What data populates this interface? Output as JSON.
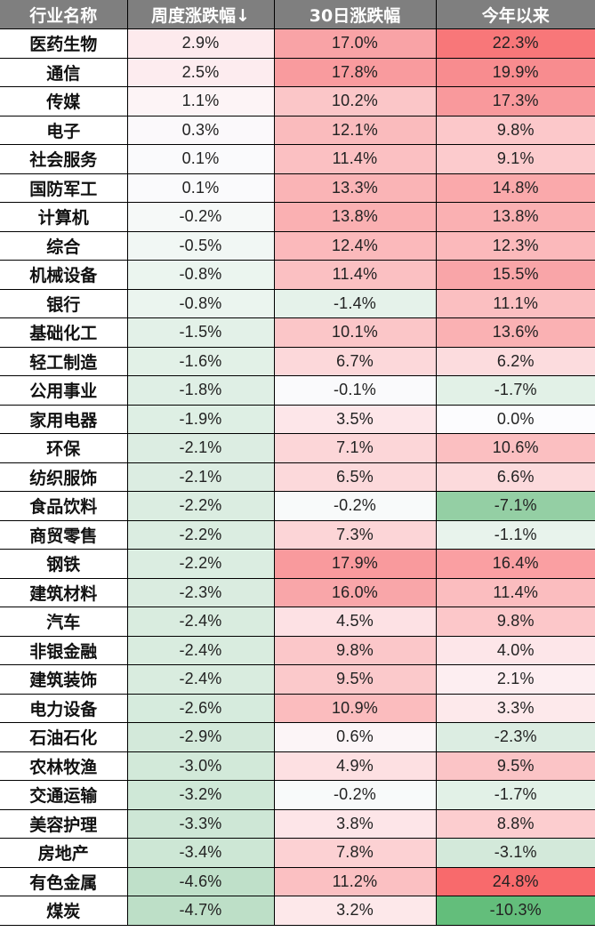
{
  "table": {
    "headers": [
      "行业名称",
      "周度涨跌幅↓",
      "30日涨跌幅",
      "今年以来"
    ],
    "rows": [
      {
        "name": "医药生物",
        "week": "2.9%",
        "d30": "17.0%",
        "ytd": "22.3%",
        "colors": [
          "#fdeaed",
          "#f9a3a6",
          "#f87779"
        ]
      },
      {
        "name": "通信",
        "week": "2.5%",
        "d30": "17.8%",
        "ytd": "19.9%",
        "colors": [
          "#fdecef",
          "#f99b9e",
          "#f88c8f"
        ]
      },
      {
        "name": "传媒",
        "week": "1.1%",
        "d30": "10.2%",
        "ytd": "17.3%",
        "colors": [
          "#fdf4f6",
          "#fbc6c8",
          "#f9999c"
        ]
      },
      {
        "name": "电子",
        "week": "0.3%",
        "d30": "12.1%",
        "ytd": "9.8%",
        "colors": [
          "#fbf9fb",
          "#fabbbd",
          "#fcc8ca"
        ]
      },
      {
        "name": "社会服务",
        "week": "0.1%",
        "d30": "11.4%",
        "ytd": "9.1%",
        "colors": [
          "#fafafc",
          "#fbc0c2",
          "#fccbcd"
        ]
      },
      {
        "name": "国防军工",
        "week": "0.1%",
        "d30": "13.3%",
        "ytd": "14.8%",
        "colors": [
          "#fafafc",
          "#fab4b6",
          "#faa9ab"
        ]
      },
      {
        "name": "计算机",
        "week": "-0.2%",
        "d30": "13.8%",
        "ytd": "13.8%",
        "colors": [
          "#f6f9f8",
          "#fab0b2",
          "#fab0b2"
        ]
      },
      {
        "name": "综合",
        "week": "-0.5%",
        "d30": "12.4%",
        "ytd": "12.3%",
        "colors": [
          "#f1f7f4",
          "#fbb9bb",
          "#fbb9bb"
        ]
      },
      {
        "name": "机械设备",
        "week": "-0.8%",
        "d30": "11.4%",
        "ytd": "15.5%",
        "colors": [
          "#ebf5ef",
          "#fbc0c2",
          "#f9a5a8"
        ]
      },
      {
        "name": "银行",
        "week": "-0.8%",
        "d30": "-1.4%",
        "ytd": "11.1%",
        "colors": [
          "#ebf5ef",
          "#e5f2ea",
          "#fbbfc1"
        ]
      },
      {
        "name": "基础化工",
        "week": "-1.5%",
        "d30": "10.1%",
        "ytd": "13.6%",
        "colors": [
          "#e3f1e8",
          "#fbc6c8",
          "#fab1b3"
        ]
      },
      {
        "name": "轻工制造",
        "week": "-1.6%",
        "d30": "6.7%",
        "ytd": "6.2%",
        "colors": [
          "#e2f1e7",
          "#fcd8da",
          "#fcdcde"
        ]
      },
      {
        "name": "公用事业",
        "week": "-1.8%",
        "d30": "-0.1%",
        "ytd": "-1.7%",
        "colors": [
          "#dfefe5",
          "#fafafc",
          "#e2f1e7"
        ]
      },
      {
        "name": "家用电器",
        "week": "-1.9%",
        "d30": "3.5%",
        "ytd": "0.0%",
        "colors": [
          "#deefe4",
          "#fde6e9",
          "#fcfcfe"
        ]
      },
      {
        "name": "环保",
        "week": "-2.1%",
        "d30": "7.1%",
        "ytd": "10.6%",
        "colors": [
          "#dcede2",
          "#fcd6d8",
          "#fbbfc1"
        ]
      },
      {
        "name": "纺织服饰",
        "week": "-2.1%",
        "d30": "6.5%",
        "ytd": "6.6%",
        "colors": [
          "#dcede2",
          "#fcd9db",
          "#fcdadc"
        ]
      },
      {
        "name": "食品饮料",
        "week": "-2.2%",
        "d30": "-0.2%",
        "ytd": "-7.1%",
        "colors": [
          "#dbede1",
          "#f8fafa",
          "#94cfa4"
        ]
      },
      {
        "name": "商贸零售",
        "week": "-2.2%",
        "d30": "7.3%",
        "ytd": "-1.1%",
        "colors": [
          "#dbede1",
          "#fcd5d7",
          "#e8f3ec"
        ]
      },
      {
        "name": "钢铁",
        "week": "-2.2%",
        "d30": "17.9%",
        "ytd": "16.4%",
        "colors": [
          "#dbede1",
          "#f99a9d",
          "#fa9fa2"
        ]
      },
      {
        "name": "建筑材料",
        "week": "-2.3%",
        "d30": "16.0%",
        "ytd": "11.4%",
        "colors": [
          "#daece0",
          "#f9a6a9",
          "#fbbdbf"
        ]
      },
      {
        "name": "汽车",
        "week": "-2.4%",
        "d30": "4.5%",
        "ytd": "9.8%",
        "colors": [
          "#d9ecdf",
          "#fde1e4",
          "#fcc7c9"
        ]
      },
      {
        "name": "非银金融",
        "week": "-2.4%",
        "d30": "9.8%",
        "ytd": "4.0%",
        "colors": [
          "#d9ecdf",
          "#fbc7c9",
          "#fde6e9"
        ]
      },
      {
        "name": "建筑装饰",
        "week": "-2.4%",
        "d30": "9.5%",
        "ytd": "2.1%",
        "colors": [
          "#d9ecdf",
          "#fbc9cb",
          "#fdeef1"
        ]
      },
      {
        "name": "电力设备",
        "week": "-2.6%",
        "d30": "10.9%",
        "ytd": "3.3%",
        "colors": [
          "#d6ebdd",
          "#fbbcbe",
          "#fde9eb"
        ]
      },
      {
        "name": "石油石化",
        "week": "-2.9%",
        "d30": "0.6%",
        "ytd": "-2.3%",
        "colors": [
          "#d3e9da",
          "#fcf5f7",
          "#dcede2"
        ]
      },
      {
        "name": "农林牧渔",
        "week": "-3.0%",
        "d30": "4.9%",
        "ytd": "9.5%",
        "colors": [
          "#d2e9d9",
          "#fde0e2",
          "#fbc4c6"
        ]
      },
      {
        "name": "交通运输",
        "week": "-3.2%",
        "d30": "-0.2%",
        "ytd": "-1.7%",
        "colors": [
          "#cfe8d7",
          "#f8fafa",
          "#e2f1e7"
        ]
      },
      {
        "name": "美容护理",
        "week": "-3.3%",
        "d30": "3.8%",
        "ytd": "8.8%",
        "colors": [
          "#cee7d6",
          "#fde5e8",
          "#fccdcf"
        ]
      },
      {
        "name": "房地产",
        "week": "-3.4%",
        "d30": "7.8%",
        "ytd": "-3.1%",
        "colors": [
          "#cde7d5",
          "#fcd1d3",
          "#d3e9da"
        ]
      },
      {
        "name": "有色金属",
        "week": "-4.6%",
        "d30": "11.2%",
        "ytd": "24.8%",
        "colors": [
          "#bfe0c9",
          "#fbc0c2",
          "#f86a6c"
        ]
      },
      {
        "name": "煤炭",
        "week": "-4.7%",
        "d30": "3.2%",
        "ytd": "-10.3%",
        "colors": [
          "#bddfc7",
          "#fde8ea",
          "#63be7b"
        ]
      }
    ]
  },
  "colors": {
    "header_bg": "#7f7f7f",
    "header_text": "#ffffff",
    "max_positive": "#f8696b",
    "max_negative": "#63be7b",
    "neutral": "#fcfcff"
  },
  "chart_data": {
    "type": "heatmap",
    "title": "",
    "columns": [
      "行业名称",
      "周度涨跌幅↓",
      "30日涨跌幅",
      "今年以来"
    ],
    "sort": "周度涨跌幅 descending",
    "categories": [
      "医药生物",
      "通信",
      "传媒",
      "电子",
      "社会服务",
      "国防军工",
      "计算机",
      "综合",
      "机械设备",
      "银行",
      "基础化工",
      "轻工制造",
      "公用事业",
      "家用电器",
      "环保",
      "纺织服饰",
      "食品饮料",
      "商贸零售",
      "钢铁",
      "建筑材料",
      "汽车",
      "非银金融",
      "建筑装饰",
      "电力设备",
      "石油石化",
      "农林牧渔",
      "交通运输",
      "美容护理",
      "房地产",
      "有色金属",
      "煤炭"
    ],
    "series": [
      {
        "name": "周度涨跌幅",
        "unit": "%",
        "values": [
          2.9,
          2.5,
          1.1,
          0.3,
          0.1,
          0.1,
          -0.2,
          -0.5,
          -0.8,
          -0.8,
          -1.5,
          -1.6,
          -1.8,
          -1.9,
          -2.1,
          -2.1,
          -2.2,
          -2.2,
          -2.2,
          -2.3,
          -2.4,
          -2.4,
          -2.4,
          -2.6,
          -2.9,
          -3.0,
          -3.2,
          -3.3,
          -3.4,
          -4.6,
          -4.7
        ]
      },
      {
        "name": "30日涨跌幅",
        "unit": "%",
        "values": [
          17.0,
          17.8,
          10.2,
          12.1,
          11.4,
          13.3,
          13.8,
          12.4,
          11.4,
          -1.4,
          10.1,
          6.7,
          -0.1,
          3.5,
          7.1,
          6.5,
          -0.2,
          7.3,
          17.9,
          16.0,
          4.5,
          9.8,
          9.5,
          10.9,
          0.6,
          4.9,
          -0.2,
          3.8,
          7.8,
          11.2,
          3.2
        ]
      },
      {
        "name": "今年以来",
        "unit": "%",
        "values": [
          22.3,
          19.9,
          17.3,
          9.8,
          9.1,
          14.8,
          13.8,
          12.3,
          15.5,
          11.1,
          13.6,
          6.2,
          -1.7,
          0.0,
          10.6,
          6.6,
          -7.1,
          -1.1,
          16.4,
          11.4,
          9.8,
          4.0,
          2.1,
          3.3,
          -2.3,
          9.5,
          -1.7,
          8.8,
          -3.1,
          24.8,
          -10.3
        ]
      }
    ],
    "color_scale": {
      "positive": "#f8696b",
      "zero": "#fcfcff",
      "negative": "#63be7b"
    }
  }
}
